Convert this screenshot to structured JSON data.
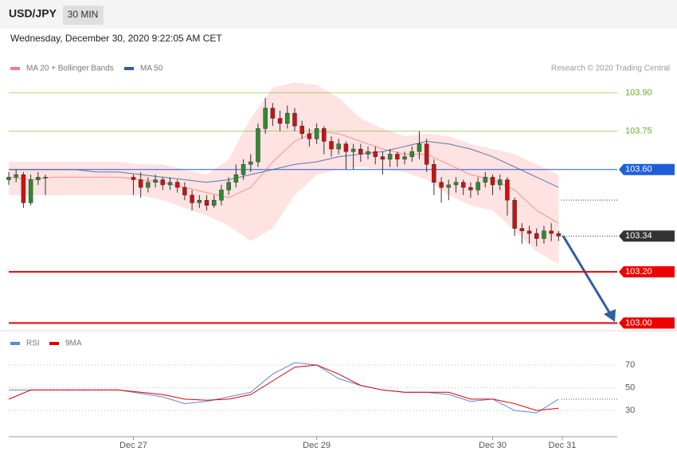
{
  "header": {
    "symbol": "USD/JPY",
    "timeframe": "30 MIN",
    "date": "Wednesday, December 30, 2020 9:22:05 AM CET",
    "credit": "Research © 2020 Trading Central"
  },
  "chart_data": [
    {
      "type": "candlestick",
      "legend": [
        {
          "name": "MA 20 + Bollinger Bands",
          "color": "#f08080"
        },
        {
          "name": "MA 50",
          "color": "#2f5f9f"
        }
      ],
      "ylim": [
        102.97,
        104.06
      ],
      "xlim": [
        0,
        166
      ],
      "xticks": [
        {
          "value": 34,
          "label": "Dec 27"
        },
        {
          "value": 84,
          "label": "Dec 29"
        },
        {
          "value": 132,
          "label": "Dec 30"
        },
        {
          "value": 151,
          "label": "Dec 31"
        }
      ],
      "levels": [
        {
          "value": 103.9,
          "label": "103.90",
          "color": "#8cc63f"
        },
        {
          "value": 103.75,
          "label": "103.75",
          "color": "#8cc63f"
        },
        {
          "value": 103.6,
          "label": "103.60",
          "color": "#1e5fd8"
        },
        {
          "value": 103.34,
          "label": "103.34",
          "color": "#333333"
        },
        {
          "value": 103.2,
          "label": "103.20",
          "color": "#ee0000"
        },
        {
          "value": 103.0,
          "label": "103.00",
          "color": "#ee0000"
        }
      ],
      "up_color": "#2e8b2e",
      "down_color": "#cc1111",
      "candles": [
        [
          0,
          103.56,
          103.59,
          103.54,
          103.57
        ],
        [
          2,
          103.57,
          103.6,
          103.55,
          103.58
        ],
        [
          4,
          103.58,
          103.59,
          103.45,
          103.47
        ],
        [
          6,
          103.47,
          103.58,
          103.46,
          103.56
        ],
        [
          8,
          103.56,
          103.59,
          103.54,
          103.57
        ],
        [
          10,
          103.57,
          103.58,
          103.5,
          103.57
        ],
        [
          34,
          103.57,
          103.58,
          103.5,
          103.56
        ],
        [
          36,
          103.56,
          103.59,
          103.49,
          103.53
        ],
        [
          38,
          103.53,
          103.57,
          103.51,
          103.55
        ],
        [
          40,
          103.55,
          103.58,
          103.53,
          103.56
        ],
        [
          42,
          103.56,
          103.57,
          103.52,
          103.54
        ],
        [
          44,
          103.54,
          103.57,
          103.52,
          103.55
        ],
        [
          46,
          103.55,
          103.56,
          103.51,
          103.53
        ],
        [
          48,
          103.53,
          103.55,
          103.48,
          103.5
        ],
        [
          50,
          103.5,
          103.52,
          103.44,
          103.47
        ],
        [
          52,
          103.47,
          103.5,
          103.45,
          103.48
        ],
        [
          54,
          103.48,
          103.5,
          103.44,
          103.46
        ],
        [
          56,
          103.46,
          103.5,
          103.45,
          103.48
        ],
        [
          58,
          103.48,
          103.54,
          103.46,
          103.52
        ],
        [
          60,
          103.52,
          103.57,
          103.5,
          103.55
        ],
        [
          62,
          103.55,
          103.62,
          103.53,
          103.58
        ],
        [
          64,
          103.58,
          103.64,
          103.56,
          103.62
        ],
        [
          66,
          103.62,
          103.66,
          103.59,
          103.63
        ],
        [
          68,
          103.63,
          103.78,
          103.61,
          103.76
        ],
        [
          70,
          103.76,
          103.88,
          103.74,
          103.84
        ],
        [
          72,
          103.84,
          103.86,
          103.77,
          103.8
        ],
        [
          74,
          103.8,
          103.83,
          103.75,
          103.78
        ],
        [
          76,
          103.78,
          103.85,
          103.76,
          103.82
        ],
        [
          78,
          103.82,
          103.84,
          103.75,
          103.77
        ],
        [
          80,
          103.77,
          103.79,
          103.72,
          103.74
        ],
        [
          82,
          103.74,
          103.76,
          103.69,
          103.72
        ],
        [
          84,
          103.72,
          103.78,
          103.7,
          103.76
        ],
        [
          86,
          103.76,
          103.77,
          103.66,
          103.71
        ],
        [
          88,
          103.71,
          103.73,
          103.65,
          103.68
        ],
        [
          90,
          103.68,
          103.72,
          103.66,
          103.7
        ],
        [
          92,
          103.7,
          103.71,
          103.6,
          103.67
        ],
        [
          94,
          103.67,
          103.7,
          103.6,
          103.68
        ],
        [
          96,
          103.68,
          103.7,
          103.63,
          103.66
        ],
        [
          98,
          103.66,
          103.69,
          103.64,
          103.67
        ],
        [
          100,
          103.67,
          103.69,
          103.62,
          103.65
        ],
        [
          102,
          103.65,
          103.67,
          103.58,
          103.64
        ],
        [
          104,
          103.64,
          103.68,
          103.61,
          103.66
        ],
        [
          106,
          103.66,
          103.67,
          103.61,
          103.64
        ],
        [
          108,
          103.64,
          103.67,
          103.62,
          103.65
        ],
        [
          110,
          103.65,
          103.69,
          103.63,
          103.67
        ],
        [
          112,
          103.67,
          103.75,
          103.64,
          103.7
        ],
        [
          114,
          103.7,
          103.72,
          103.59,
          103.62
        ],
        [
          116,
          103.62,
          103.64,
          103.5,
          103.55
        ],
        [
          118,
          103.55,
          103.57,
          103.47,
          103.53
        ],
        [
          120,
          103.53,
          103.56,
          103.48,
          103.54
        ],
        [
          122,
          103.54,
          103.57,
          103.51,
          103.55
        ],
        [
          124,
          103.55,
          103.56,
          103.5,
          103.53
        ],
        [
          126,
          103.53,
          103.55,
          103.49,
          103.52
        ],
        [
          128,
          103.52,
          103.57,
          103.5,
          103.55
        ],
        [
          130,
          103.55,
          103.59,
          103.53,
          103.57
        ],
        [
          132,
          103.57,
          103.58,
          103.5,
          103.54
        ],
        [
          134,
          103.54,
          103.58,
          103.52,
          103.56
        ],
        [
          136,
          103.56,
          103.57,
          103.42,
          103.48
        ],
        [
          138,
          103.48,
          103.49,
          103.34,
          103.37
        ],
        [
          140,
          103.37,
          103.39,
          103.31,
          103.36
        ],
        [
          142,
          103.36,
          103.38,
          103.31,
          103.35
        ],
        [
          144,
          103.35,
          103.37,
          103.3,
          103.33
        ],
        [
          146,
          103.33,
          103.38,
          103.31,
          103.36
        ],
        [
          148,
          103.36,
          103.39,
          103.32,
          103.35
        ],
        [
          150,
          103.35,
          103.36,
          103.32,
          103.34
        ]
      ],
      "x": [
        0,
        6,
        12,
        18,
        24,
        30,
        36,
        42,
        48,
        54,
        60,
        66,
        72,
        78,
        84,
        90,
        96,
        102,
        108,
        114,
        120,
        126,
        132,
        138,
        144,
        150
      ],
      "band_upper": [
        103.63,
        103.63,
        103.63,
        103.63,
        103.63,
        103.63,
        103.62,
        103.62,
        103.6,
        103.58,
        103.64,
        103.8,
        103.92,
        103.94,
        103.93,
        103.88,
        103.8,
        103.76,
        103.73,
        103.74,
        103.73,
        103.7,
        103.68,
        103.66,
        103.62,
        103.58
      ],
      "band_lower": [
        103.5,
        103.5,
        103.5,
        103.5,
        103.5,
        103.5,
        103.5,
        103.48,
        103.45,
        103.42,
        103.38,
        103.32,
        103.37,
        103.5,
        103.58,
        103.6,
        103.61,
        103.6,
        103.59,
        103.56,
        103.5,
        103.46,
        103.44,
        103.36,
        103.28,
        103.23
      ],
      "ma20": [
        103.57,
        103.56,
        103.57,
        103.57,
        103.57,
        103.57,
        103.56,
        103.55,
        103.53,
        103.51,
        103.49,
        103.53,
        103.63,
        103.71,
        103.75,
        103.74,
        103.71,
        103.68,
        103.66,
        103.66,
        103.62,
        103.58,
        103.56,
        103.52,
        103.44,
        103.39
      ],
      "ma50": [
        103.6,
        103.6,
        103.6,
        103.6,
        103.59,
        103.59,
        103.58,
        103.57,
        103.56,
        103.55,
        103.56,
        103.58,
        103.6,
        103.62,
        103.63,
        103.65,
        103.66,
        103.67,
        103.69,
        103.71,
        103.7,
        103.68,
        103.65,
        103.61,
        103.57,
        103.53
      ]
    },
    {
      "type": "line",
      "xlim": [
        0,
        166
      ],
      "ylim": [
        7,
        98
      ],
      "yticks": [
        30,
        50,
        70
      ],
      "grid": true,
      "x": [
        0,
        6,
        12,
        18,
        24,
        30,
        36,
        42,
        48,
        54,
        60,
        66,
        72,
        78,
        84,
        90,
        96,
        102,
        108,
        114,
        120,
        126,
        132,
        138,
        144,
        150
      ],
      "series": [
        {
          "name": "RSI",
          "color": "#5b8bd9",
          "values": [
            48,
            48,
            48,
            48,
            48,
            48,
            45,
            42,
            36,
            38,
            42,
            46,
            62,
            72,
            70,
            58,
            52,
            48,
            46,
            46,
            44,
            38,
            40,
            30,
            28,
            40
          ]
        },
        {
          "name": "9MA",
          "color": "#e00000",
          "values": [
            40,
            48,
            48,
            48,
            48,
            48,
            46,
            44,
            40,
            39,
            40,
            44,
            56,
            68,
            70,
            62,
            52,
            48,
            46,
            46,
            46,
            40,
            40,
            36,
            30,
            32
          ]
        }
      ]
    }
  ]
}
